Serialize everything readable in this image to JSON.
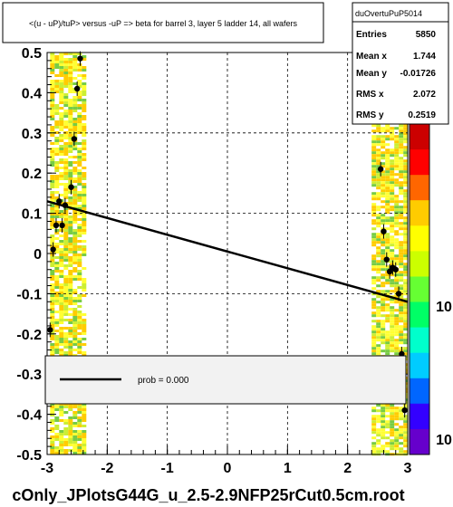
{
  "chart_data": {
    "type": "scatter",
    "title": "<(u - uP)/tuP> versus  -uP => beta for barrel 3, layer 5 ladder 14, all wafers",
    "footer": "cOnly_JPlotsG44G_u_2.5-2.9NFP25rCut0.5cm.root",
    "xlim": [
      -3,
      3
    ],
    "ylim": [
      -0.5,
      0.5
    ],
    "x_ticks": [
      "-3",
      "-2",
      "-1",
      "0",
      "1",
      "2",
      "3"
    ],
    "y_ticks": [
      "-0.5",
      "-0.4",
      "-0.3",
      "-0.2",
      "-0.1",
      "0",
      "0.1",
      "0.2",
      "0.3",
      "0.4",
      "0.5"
    ],
    "grid": true,
    "stats_box": {
      "name": "duOvertuPuP5014",
      "rows": [
        {
          "label": "Entries",
          "value": "5850"
        },
        {
          "label": "Mean x",
          "value": "1.744"
        },
        {
          "label": "Mean y",
          "value": "-0.01726"
        },
        {
          "label": "RMS x",
          "value": "2.072"
        },
        {
          "label": "RMS y",
          "value": "0.2519"
        }
      ]
    },
    "legend": {
      "entries": [
        {
          "label": "prob = 0.000"
        }
      ]
    },
    "colorbar": {
      "tick_labels": [
        "10",
        "10"
      ]
    },
    "fit_line": {
      "x": [
        -3,
        3
      ],
      "y": [
        0.13,
        -0.12
      ]
    },
    "profile_points": [
      {
        "x": -2.95,
        "y": -0.19
      },
      {
        "x": -2.9,
        "y": 0.01
      },
      {
        "x": -2.85,
        "y": 0.07
      },
      {
        "x": -2.8,
        "y": 0.13
      },
      {
        "x": -2.75,
        "y": 0.07
      },
      {
        "x": -2.7,
        "y": 0.12
      },
      {
        "x": -2.6,
        "y": 0.165
      },
      {
        "x": -2.55,
        "y": 0.285
      },
      {
        "x": -2.5,
        "y": 0.41
      },
      {
        "x": -2.45,
        "y": 0.485
      },
      {
        "x": 2.45,
        "y": 0.495
      },
      {
        "x": 2.55,
        "y": 0.21
      },
      {
        "x": 2.6,
        "y": 0.055
      },
      {
        "x": 2.65,
        "y": -0.015
      },
      {
        "x": 2.7,
        "y": -0.045
      },
      {
        "x": 2.75,
        "y": -0.035
      },
      {
        "x": 2.8,
        "y": -0.04
      },
      {
        "x": 2.85,
        "y": -0.1
      },
      {
        "x": 2.9,
        "y": -0.25
      },
      {
        "x": 2.95,
        "y": -0.39
      }
    ],
    "density_bands": [
      {
        "x_range": [
          -2.95,
          -2.35
        ],
        "y_range": [
          -0.5,
          0.5
        ]
      },
      {
        "x_range": [
          2.4,
          2.95
        ],
        "y_range": [
          -0.5,
          0.45
        ]
      }
    ],
    "colors": {
      "frame": "#000000",
      "grid": "#000000",
      "marker": "#000000",
      "fit": "#000000",
      "band_high": "#ffcc00",
      "band_mid": "#ffff33",
      "band_low": "#ccee33",
      "band_green": "#77cc44",
      "stats_bg": "#ffffff",
      "legend_bg": "#f2f2f2",
      "colorbar_stops": [
        "#cc0000",
        "#ff0000",
        "#ff6600",
        "#ffcc00",
        "#ffff00",
        "#ccff00",
        "#66ff33",
        "#00ff66",
        "#00ffcc",
        "#00ccff",
        "#0066ff",
        "#3300ff",
        "#6600cc"
      ]
    }
  }
}
